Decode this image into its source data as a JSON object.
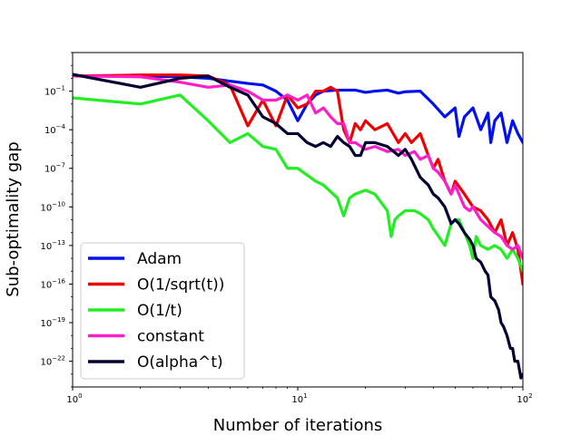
{
  "chart_data": {
    "type": "line",
    "xlabel": "Number of iterations",
    "ylabel": "Sub-optimality gap",
    "xscale": "log",
    "yscale": "log",
    "xlim": [
      1,
      100
    ],
    "ylim": [
      1e-24,
      100.0
    ],
    "legend_position": "lower-left",
    "grid": false,
    "x_ticks": [
      {
        "value": 1,
        "base": "10",
        "exp": "0"
      },
      {
        "value": 10,
        "base": "10",
        "exp": "1"
      },
      {
        "value": 100,
        "base": "10",
        "exp": "2"
      }
    ],
    "y_ticks": [
      {
        "value": 0.1,
        "base": "10",
        "exp": "−1"
      },
      {
        "value": 0.0001,
        "base": "10",
        "exp": "−4"
      },
      {
        "value": 1e-07,
        "base": "10",
        "exp": "−7"
      },
      {
        "value": 1e-10,
        "base": "10",
        "exp": "−10"
      },
      {
        "value": 1e-13,
        "base": "10",
        "exp": "−13"
      },
      {
        "value": 1e-16,
        "base": "10",
        "exp": "−16"
      },
      {
        "value": 1e-19,
        "base": "10",
        "exp": "−19"
      },
      {
        "value": 1e-22,
        "base": "10",
        "exp": "−22"
      }
    ],
    "series": [
      {
        "name": "Adam",
        "color": "#0011ee",
        "x": [
          1,
          2,
          3,
          4,
          5,
          6,
          7,
          8,
          9,
          10,
          11,
          12,
          13,
          15,
          18,
          20,
          22,
          25,
          28,
          30,
          35,
          40,
          45,
          50,
          52,
          55,
          60,
          65,
          70,
          72,
          75,
          80,
          85,
          90,
          95,
          100
        ],
        "y": [
          1.5,
          1.5,
          1.3,
          1.0,
          0.6,
          0.4,
          0.3,
          0.1,
          0.02,
          0.0005,
          0.01,
          0.05,
          0.1,
          0.12,
          0.12,
          0.08,
          0.1,
          0.12,
          0.07,
          0.09,
          0.1,
          0.01,
          0.001,
          0.005,
          3e-05,
          0.001,
          0.005,
          0.0001,
          0.002,
          1e-05,
          0.0005,
          0.002,
          1e-05,
          0.0005,
          5e-05,
          1e-05
        ]
      },
      {
        "name": "O(1/sqrt(t))",
        "color": "#ee0000",
        "x": [
          1,
          2,
          3,
          4,
          5,
          6,
          7,
          8,
          9,
          10,
          11,
          12,
          13,
          14,
          15,
          16,
          17,
          18,
          19,
          20,
          22,
          25,
          28,
          30,
          32,
          35,
          38,
          40,
          42,
          45,
          48,
          50,
          55,
          60,
          65,
          70,
          75,
          80,
          85,
          90,
          95,
          100
        ],
        "y": [
          1.5,
          1.8,
          1.8,
          1.5,
          0.3,
          0.0002,
          0.02,
          0.0002,
          0.05,
          0.005,
          0.01,
          0.1,
          0.1,
          0.2,
          0.1,
          0.0001,
          1e-05,
          0.0003,
          0.0001,
          0.0005,
          0.0001,
          0.0003,
          1e-05,
          5e-05,
          1e-05,
          5e-05,
          1e-06,
          1e-07,
          5e-07,
          1e-08,
          1e-09,
          1e-08,
          1e-09,
          1e-10,
          5e-11,
          1e-11,
          1e-12,
          1e-11,
          1e-13,
          1e-12,
          5e-14,
          1e-16
        ]
      },
      {
        "name": "O(1/t)",
        "color": "#22ee22",
        "x": [
          1,
          2,
          3,
          4,
          5,
          6,
          7,
          8,
          9,
          10,
          11,
          12,
          13,
          15,
          16,
          17,
          18,
          20,
          22,
          25,
          26,
          27,
          28,
          30,
          33,
          35,
          38,
          40,
          45,
          48,
          50,
          52,
          55,
          58,
          60,
          62,
          65,
          70,
          75,
          80,
          85,
          90,
          95,
          100
        ],
        "y": [
          0.03,
          0.01,
          0.05,
          0.0005,
          1e-05,
          5e-05,
          5e-06,
          3e-06,
          1e-07,
          1e-07,
          3e-08,
          1e-08,
          5e-09,
          5e-10,
          2e-11,
          5e-10,
          1e-09,
          2e-09,
          1e-09,
          5e-11,
          5e-13,
          1e-11,
          2e-11,
          5e-11,
          5e-11,
          3e-11,
          1e-11,
          2e-12,
          1e-13,
          5e-12,
          1e-11,
          1e-11,
          1e-12,
          1e-13,
          1e-14,
          5e-13,
          1e-13,
          5e-14,
          1e-13,
          5e-14,
          1e-14,
          5e-14,
          1e-14,
          1e-15
        ]
      },
      {
        "name": "constant",
        "color": "#ff1ec8",
        "x": [
          1,
          2,
          3,
          4,
          5,
          6,
          7,
          8,
          9,
          10,
          11,
          12,
          13,
          14,
          15,
          16,
          17,
          18,
          20,
          22,
          25,
          28,
          30,
          33,
          35,
          38,
          40,
          42,
          45,
          48,
          50,
          55,
          58,
          60,
          65,
          70,
          75,
          80,
          85,
          90,
          95,
          100
        ],
        "y": [
          1.5,
          1.3,
          0.5,
          0.2,
          0.3,
          0.1,
          0.02,
          0.02,
          0.05,
          0.02,
          0.05,
          0.002,
          0.005,
          0.001,
          0.0003,
          0.0003,
          1e-05,
          1e-05,
          3e-06,
          5e-06,
          2e-06,
          3e-06,
          1e-06,
          2e-06,
          5e-07,
          1e-06,
          1e-07,
          5e-08,
          1e-08,
          1e-09,
          5e-09,
          1e-10,
          5e-11,
          1e-10,
          1e-11,
          3e-12,
          1e-12,
          5e-13,
          1e-13,
          5e-14,
          1e-13,
          1e-14
        ]
      },
      {
        "name": "O(alpha^t)",
        "color": "#000033",
        "x": [
          1,
          2,
          3,
          4,
          5,
          6,
          7,
          8,
          9,
          10,
          11,
          12,
          13,
          14,
          15,
          16,
          17,
          18,
          19,
          20,
          22,
          25,
          28,
          30,
          32,
          35,
          38,
          40,
          42,
          45,
          48,
          50,
          52,
          55,
          58,
          60,
          62,
          65,
          68,
          70,
          72,
          75,
          78,
          80,
          82,
          85,
          88,
          90,
          92,
          95,
          98,
          100
        ],
        "y": [
          2.0,
          0.2,
          1.0,
          1.5,
          0.2,
          0.05,
          0.001,
          0.0003,
          5e-05,
          5e-05,
          1e-05,
          5e-06,
          1e-05,
          5e-06,
          3e-05,
          1e-05,
          5e-06,
          1e-06,
          1e-06,
          1e-05,
          1e-05,
          5e-06,
          1e-06,
          3e-06,
          5e-07,
          2e-08,
          5e-09,
          1e-09,
          5e-10,
          1e-10,
          5e-12,
          1e-11,
          5e-12,
          1e-12,
          3e-13,
          1e-13,
          1e-14,
          5e-15,
          1e-15,
          5e-16,
          1e-17,
          5e-18,
          1e-18,
          1e-19,
          5e-20,
          1e-20,
          1e-21,
          1e-21,
          1e-22,
          1e-22,
          5e-24,
          1e-23
        ]
      }
    ]
  }
}
